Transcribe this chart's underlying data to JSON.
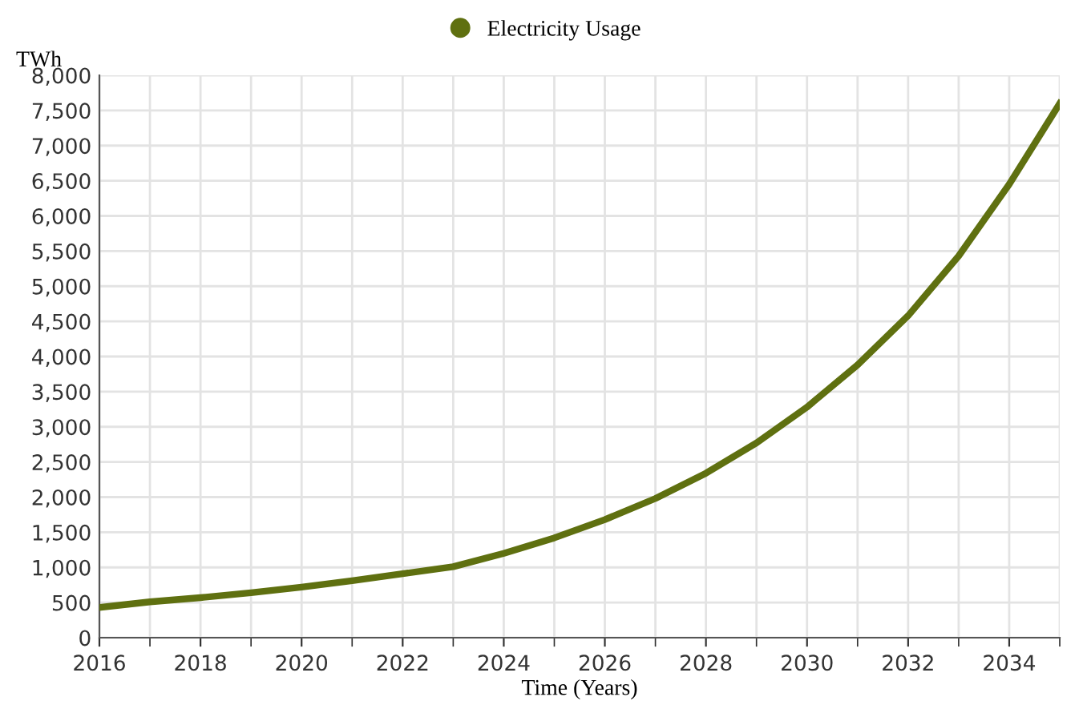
{
  "chart_data": {
    "type": "line",
    "xlabel": "Time (Years)",
    "ylabel": "TWh",
    "x": [
      2016,
      2017,
      2018,
      2019,
      2020,
      2021,
      2022,
      2023,
      2024,
      2025,
      2026,
      2027,
      2028,
      2029,
      2030,
      2031,
      2032,
      2033,
      2034,
      2035
    ],
    "series": [
      {
        "name": "Electricity Usage",
        "color": "#5f7010",
        "values": [
          430,
          510,
          570,
          640,
          720,
          810,
          910,
          1010,
          1200,
          1420,
          1680,
          1980,
          2340,
          2770,
          3280,
          3880,
          4580,
          5430,
          6450,
          7600
        ]
      }
    ],
    "xlim": [
      2016,
      2035
    ],
    "xticks": [
      2016,
      2018,
      2020,
      2022,
      2024,
      2026,
      2028,
      2030,
      2032,
      2034
    ],
    "ylim": [
      0,
      8000
    ],
    "yticks": [
      {
        "value": 0,
        "label": "0"
      },
      {
        "value": 500,
        "label": "500"
      },
      {
        "value": 1000,
        "label": "1,000"
      },
      {
        "value": 1500,
        "label": "1,500"
      },
      {
        "value": 2000,
        "label": "2,000"
      },
      {
        "value": 2500,
        "label": "2,500"
      },
      {
        "value": 3000,
        "label": "3,000"
      },
      {
        "value": 3500,
        "label": "3,500"
      },
      {
        "value": 4000,
        "label": "4,000"
      },
      {
        "value": 4500,
        "label": "4,500"
      },
      {
        "value": 5000,
        "label": "5,000"
      },
      {
        "value": 5500,
        "label": "5,500"
      },
      {
        "value": 6000,
        "label": "6,000"
      },
      {
        "value": 6500,
        "label": "6,500"
      },
      {
        "value": 7000,
        "label": "7,000"
      },
      {
        "value": 7500,
        "label": "7,500"
      },
      {
        "value": 8000,
        "label": "8,000"
      }
    ],
    "grid": true,
    "legend": "top",
    "marker": "none",
    "line_style": "solid"
  }
}
